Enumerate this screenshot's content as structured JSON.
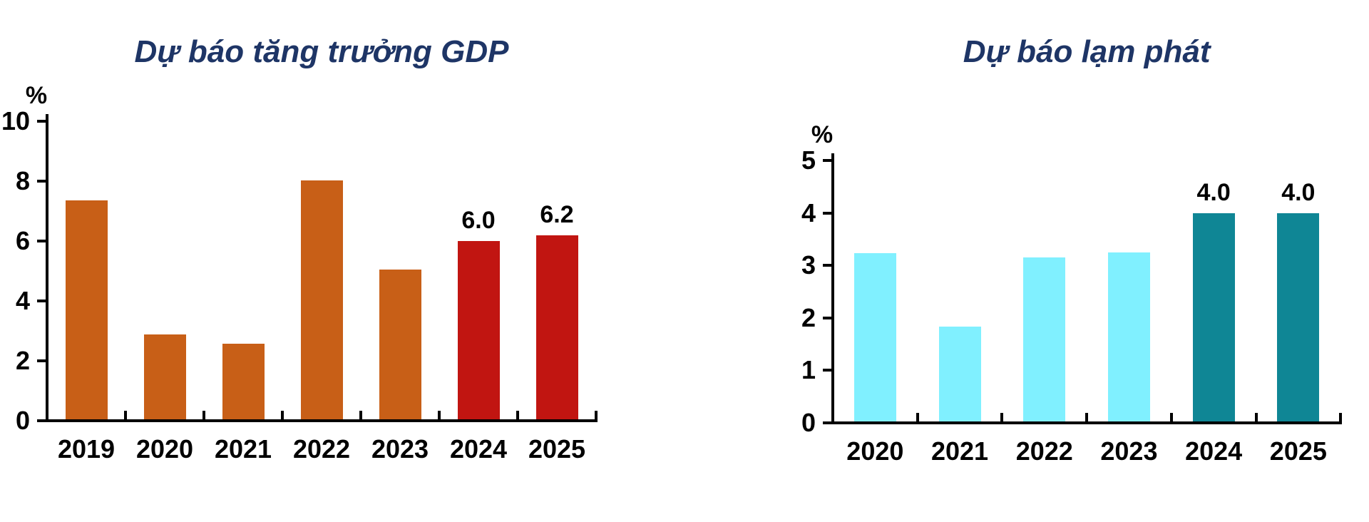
{
  "page": {
    "background": "#FFFFFF"
  },
  "chart_data": [
    {
      "type": "bar",
      "title": "Dự báo tăng trưởng GDP",
      "unit_label": "%",
      "categories": [
        "2019",
        "2020",
        "2021",
        "2022",
        "2023",
        "2024",
        "2025"
      ],
      "values": [
        7.36,
        2.87,
        2.56,
        8.02,
        5.05,
        6.0,
        6.2
      ],
      "bar_labels": [
        "",
        "",
        "",
        "",
        "",
        "6.0",
        "6.2"
      ],
      "bar_colors": [
        "#C85F17",
        "#C85F17",
        "#C85F17",
        "#C85F17",
        "#C85F17",
        "#C11511",
        "#C11511"
      ],
      "ylim": [
        0,
        10
      ],
      "yticks": [
        0,
        2,
        4,
        6,
        8,
        10
      ],
      "xlabel": "",
      "ylabel": "%",
      "grid": false,
      "legend": "none",
      "title_color": "#1E3566",
      "axis_color": "#000000"
    },
    {
      "type": "bar",
      "title": "Dự báo lạm phát",
      "unit_label": "%",
      "categories": [
        "2020",
        "2021",
        "2022",
        "2023",
        "2024",
        "2025"
      ],
      "values": [
        3.23,
        1.84,
        3.15,
        3.25,
        4.0,
        4.0
      ],
      "bar_labels": [
        "",
        "",
        "",
        "",
        "4.0",
        "4.0"
      ],
      "bar_colors": [
        "#80F0FF",
        "#80F0FF",
        "#80F0FF",
        "#80F0FF",
        "#0F8695",
        "#0F8695"
      ],
      "ylim": [
        0,
        5
      ],
      "yticks": [
        0,
        1,
        2,
        3,
        4,
        5
      ],
      "xlabel": "",
      "ylabel": "%",
      "grid": false,
      "legend": "none",
      "title_color": "#1E3566",
      "axis_color": "#000000"
    }
  ]
}
